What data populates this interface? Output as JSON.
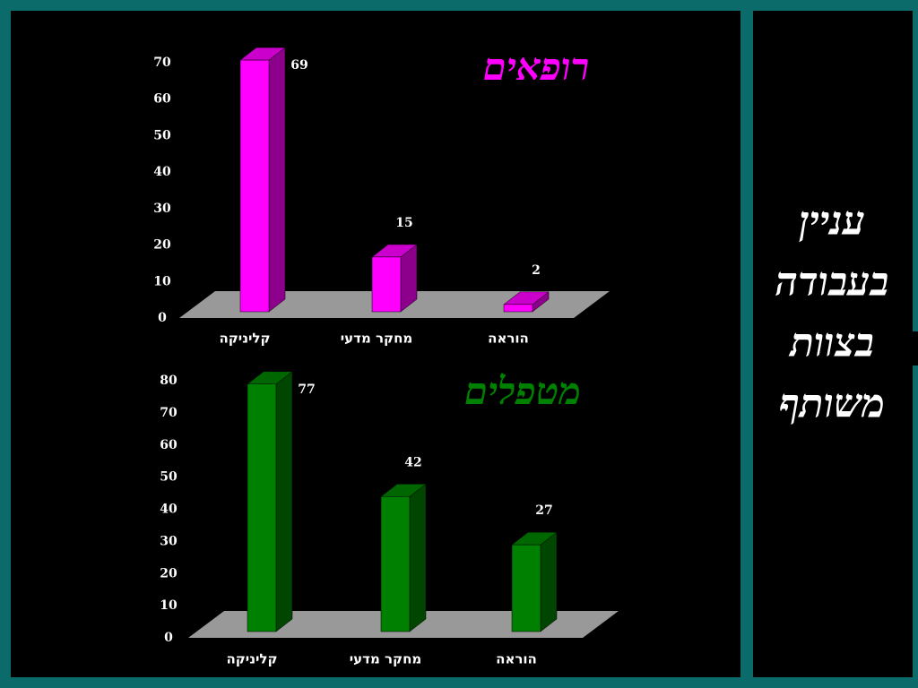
{
  "chart_data": [
    {
      "type": "bar3d",
      "title": "רופאים",
      "color": "#ff00ff",
      "categories": [
        "קליניקה",
        "מחקר מדעי",
        "הוראה"
      ],
      "values": [
        69,
        15,
        2
      ],
      "ylim": [
        0,
        70
      ],
      "yticks": [
        0,
        10,
        20,
        30,
        40,
        50,
        60,
        70
      ]
    },
    {
      "type": "bar3d",
      "title": "מטפלים",
      "color": "#008000",
      "categories": [
        "קליניקה",
        "מחקר מדעי",
        "הוראה"
      ],
      "values": [
        77,
        42,
        27
      ],
      "ylim": [
        0,
        80
      ],
      "yticks": [
        0,
        10,
        20,
        30,
        40,
        50,
        60,
        70,
        80
      ]
    }
  ],
  "side_title": [
    "עניין",
    "בעבודה",
    "בצוות",
    "משותף"
  ]
}
